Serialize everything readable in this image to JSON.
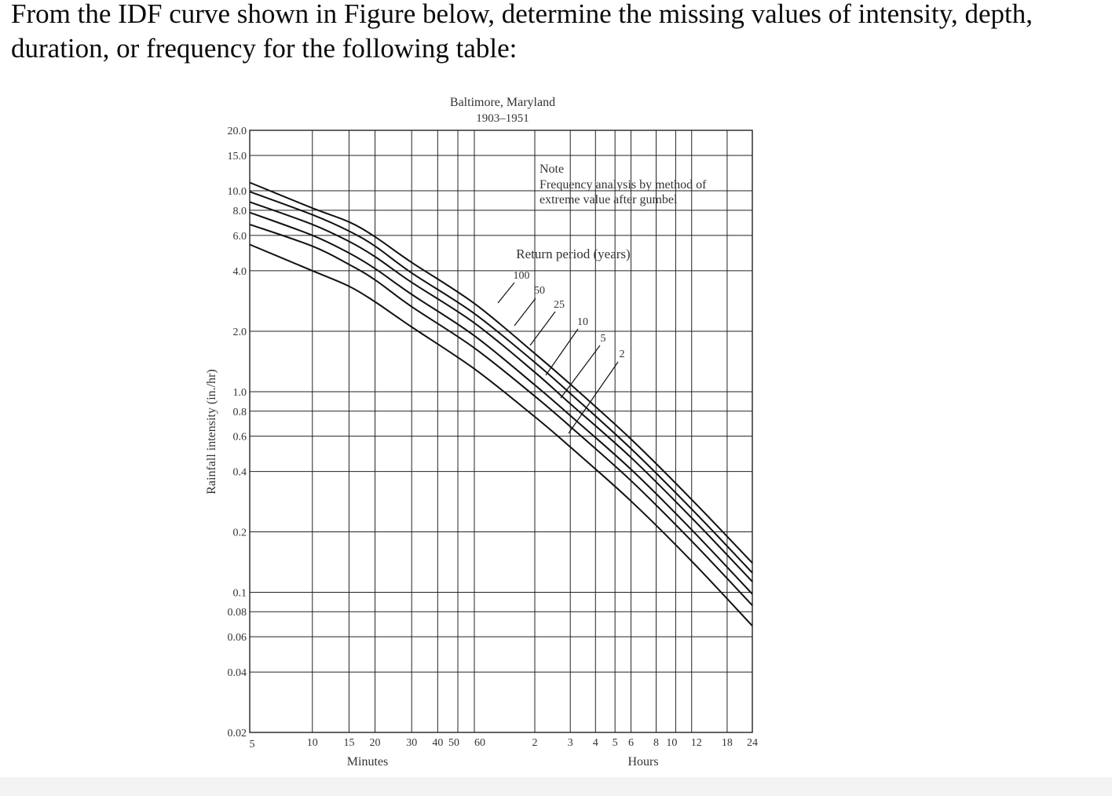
{
  "question": {
    "text": "From the IDF curve shown in Figure below, determine the missing values of intensity, depth, duration, or frequency for the following table:"
  },
  "chart_data": {
    "type": "line",
    "title": "Baltimore, Maryland",
    "subtitle": "1903–1951",
    "ylabel": "Rainfall intensity (in./hr)",
    "y_scale": "log",
    "x_scale": "log",
    "ylim": [
      0.02,
      20.0
    ],
    "xlim_minutes": [
      5,
      1440
    ],
    "y_ticks": [
      {
        "value": 20.0,
        "label": "20.0"
      },
      {
        "value": 15.0,
        "label": "15.0"
      },
      {
        "value": 10.0,
        "label": "10.0"
      },
      {
        "value": 8.0,
        "label": "8.0"
      },
      {
        "value": 6.0,
        "label": "6.0"
      },
      {
        "value": 4.0,
        "label": "4.0"
      },
      {
        "value": 2.0,
        "label": "2.0"
      },
      {
        "value": 1.0,
        "label": "1.0"
      },
      {
        "value": 0.8,
        "label": "0.8"
      },
      {
        "value": 0.6,
        "label": "0.6"
      },
      {
        "value": 0.4,
        "label": "0.4"
      },
      {
        "value": 0.2,
        "label": "0.2"
      },
      {
        "value": 0.1,
        "label": "0.1"
      },
      {
        "value": 0.08,
        "label": "0.08"
      },
      {
        "value": 0.06,
        "label": "0.06"
      },
      {
        "value": 0.04,
        "label": "0.04"
      },
      {
        "value": 0.02,
        "label": "0.02"
      }
    ],
    "x_ticks": [
      {
        "minutes": 5,
        "label": "5"
      },
      {
        "minutes": 10,
        "label": "10"
      },
      {
        "minutes": 15,
        "label": "15"
      },
      {
        "minutes": 20,
        "label": "20"
      },
      {
        "minutes": 30,
        "label": "30"
      },
      {
        "minutes": 40,
        "label": "40"
      },
      {
        "minutes": 50,
        "label": "50"
      },
      {
        "minutes": 60,
        "label": "60"
      },
      {
        "minutes": 120,
        "label": "2"
      },
      {
        "minutes": 180,
        "label": "3"
      },
      {
        "minutes": 240,
        "label": "4"
      },
      {
        "minutes": 300,
        "label": "5"
      },
      {
        "minutes": 360,
        "label": "6"
      },
      {
        "minutes": 480,
        "label": "8"
      },
      {
        "minutes": 600,
        "label": "10"
      },
      {
        "minutes": 720,
        "label": "12"
      },
      {
        "minutes": 1080,
        "label": "18"
      },
      {
        "minutes": 1440,
        "label": "24"
      }
    ],
    "x_group_labels": {
      "minutes": "Minutes",
      "hours": "Hours"
    },
    "note": {
      "heading": "Note",
      "line1": "Frequency analysis by method of",
      "line2": "extreme value after gumbel"
    },
    "series_group_label": "Return period (years)",
    "series": [
      {
        "name": "100",
        "x_minutes": [
          5,
          10,
          15,
          20,
          30,
          60,
          120,
          180,
          360,
          720,
          1440
        ],
        "y": [
          11.0,
          8.2,
          7.0,
          5.9,
          4.4,
          2.75,
          1.55,
          1.09,
          0.58,
          0.29,
          0.14
        ]
      },
      {
        "name": "50",
        "x_minutes": [
          5,
          10,
          15,
          20,
          30,
          60,
          120,
          180,
          360,
          720,
          1440
        ],
        "y": [
          9.9,
          7.6,
          6.3,
          5.3,
          3.9,
          2.45,
          1.4,
          0.98,
          0.52,
          0.26,
          0.125
        ]
      },
      {
        "name": "25",
        "x_minutes": [
          5,
          10,
          15,
          20,
          30,
          60,
          120,
          180,
          360,
          720,
          1440
        ],
        "y": [
          8.8,
          6.8,
          5.6,
          4.7,
          3.5,
          2.2,
          1.25,
          0.87,
          0.47,
          0.235,
          0.113
        ]
      },
      {
        "name": "10",
        "x_minutes": [
          5,
          10,
          15,
          20,
          30,
          60,
          120,
          180,
          360,
          720,
          1440
        ],
        "y": [
          7.8,
          6.0,
          4.9,
          4.1,
          3.05,
          1.9,
          1.08,
          0.76,
          0.41,
          0.205,
          0.098
        ]
      },
      {
        "name": "5",
        "x_minutes": [
          5,
          10,
          15,
          20,
          30,
          60,
          120,
          180,
          360,
          720,
          1440
        ],
        "y": [
          6.8,
          5.3,
          4.3,
          3.6,
          2.65,
          1.65,
          0.95,
          0.67,
          0.36,
          0.18,
          0.086
        ]
      },
      {
        "name": "2",
        "x_minutes": [
          5,
          10,
          15,
          20,
          30,
          60,
          120,
          180,
          360,
          720,
          1440
        ],
        "y": [
          5.4,
          4.0,
          3.35,
          2.8,
          2.1,
          1.3,
          0.75,
          0.53,
          0.285,
          0.143,
          0.068
        ]
      }
    ],
    "grid": true,
    "colors": {
      "grid": "#222222",
      "curves": "#111111",
      "labels": "#333333"
    }
  }
}
